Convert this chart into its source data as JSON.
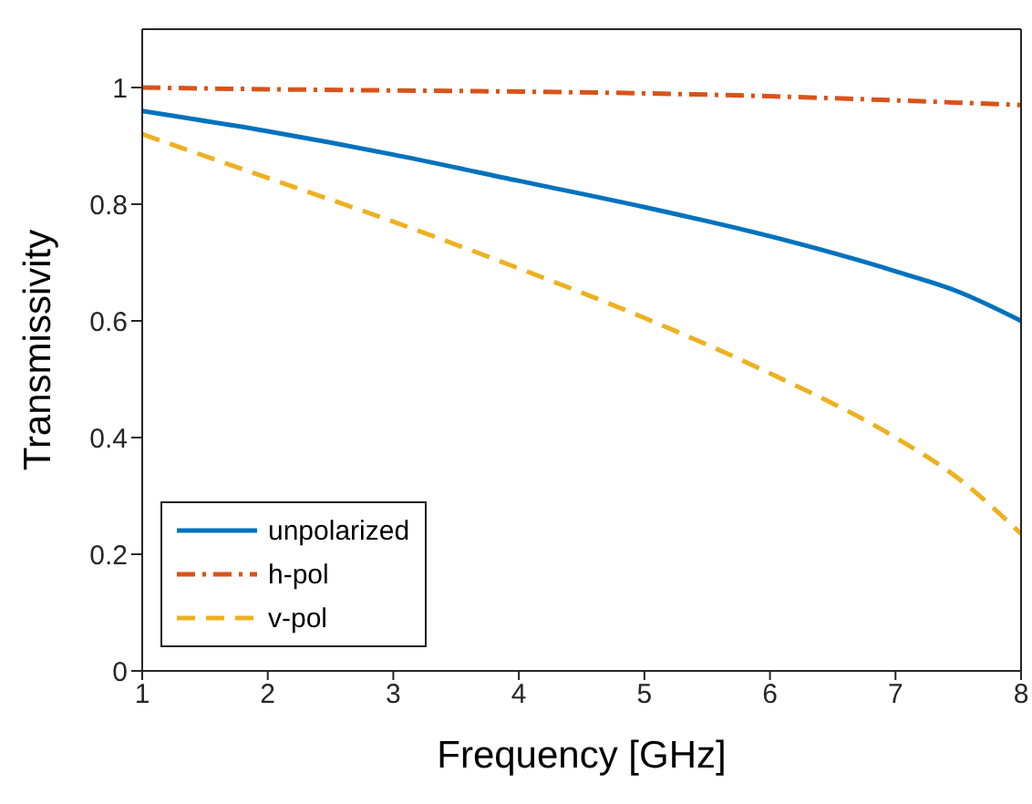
{
  "chart_data": {
    "type": "line",
    "xlabel": "Frequency [GHz]",
    "ylabel": "Transmissivity",
    "x": [
      1,
      2,
      3,
      4,
      5,
      6,
      7,
      7.5,
      8
    ],
    "series": [
      {
        "name": "unpolarized",
        "color": "#0072bd",
        "line_style": "solid",
        "values": [
          0.96,
          0.925,
          0.885,
          0.84,
          0.795,
          0.745,
          0.685,
          0.65,
          0.6
        ]
      },
      {
        "name": "h-pol",
        "color": "#d95319",
        "line_style": "dashdot",
        "values": [
          1.0,
          0.997,
          0.995,
          0.993,
          0.99,
          0.985,
          0.978,
          0.974,
          0.97
        ]
      },
      {
        "name": "v-pol",
        "color": "#edb120",
        "line_style": "dashed",
        "values": [
          0.92,
          0.845,
          0.77,
          0.69,
          0.605,
          0.51,
          0.4,
          0.33,
          0.235
        ]
      }
    ],
    "xlim": [
      1,
      8
    ],
    "xticks": [
      1,
      2,
      3,
      4,
      5,
      6,
      7,
      8
    ],
    "ylim": [
      0,
      1.1
    ],
    "yticks": [
      0,
      0.2,
      0.4,
      0.6,
      0.8,
      1
    ],
    "grid": false,
    "legend": "bottom left",
    "marker": "none"
  }
}
